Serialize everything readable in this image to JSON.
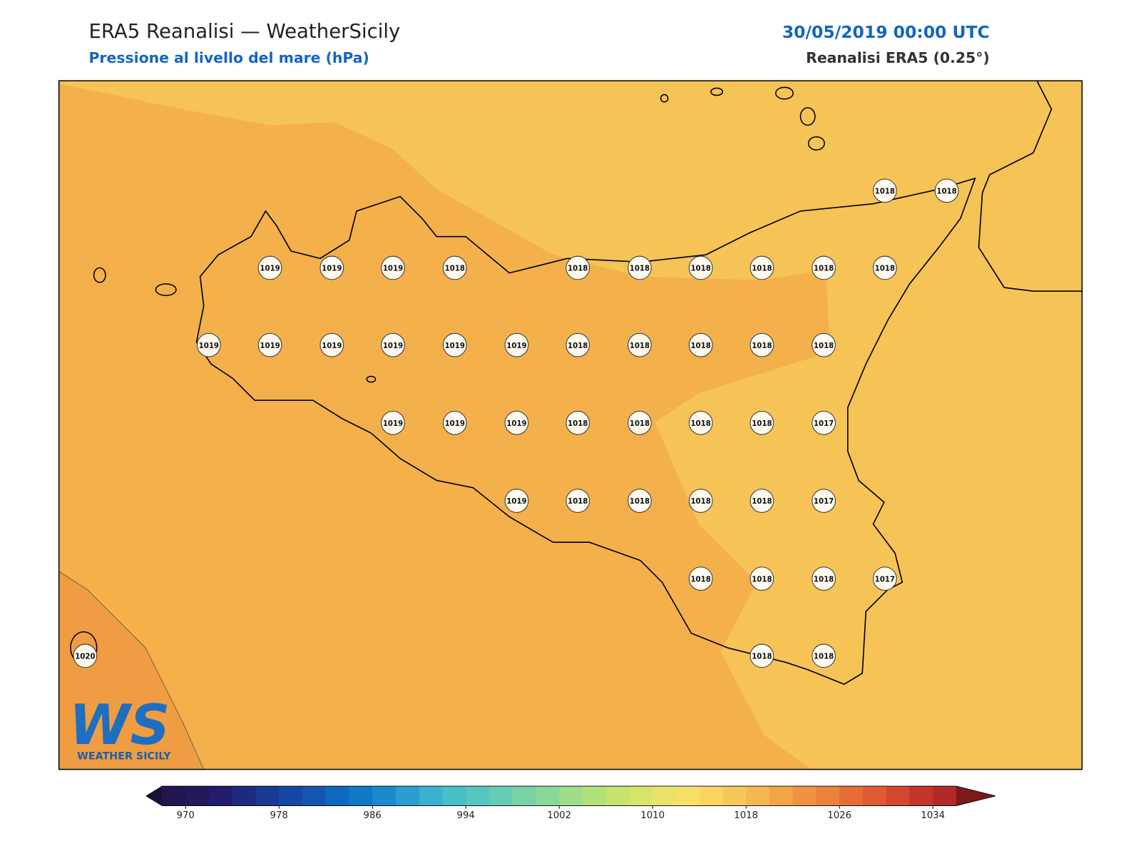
{
  "header": {
    "title": "ERA5 Reanalisi — WeatherSicily",
    "subtitle": "Pressione al livello del mare (hPa)",
    "datetime": "30/05/2019 00:00 UTC",
    "source": "Reanalisi ERA5 (0.25°)"
  },
  "stations": [
    "1018",
    "1018",
    "1019",
    "1019",
    "1019",
    "1018",
    "1018",
    "1018",
    "1018",
    "1018",
    "1018",
    "1018",
    "1019",
    "1019",
    "1019",
    "1019",
    "1019",
    "1019",
    "1018",
    "1018",
    "1018",
    "1018",
    "1018",
    "1019",
    "1019",
    "1019",
    "1018",
    "1018",
    "1018",
    "1018",
    "1017",
    "1019",
    "1018",
    "1018",
    "1018",
    "1018",
    "1017",
    "1018",
    "1018",
    "1018",
    "1017",
    "1020",
    "1018",
    "1018"
  ],
  "colorbar": {
    "ticks": [
      970,
      978,
      986,
      994,
      1002,
      1010,
      1018,
      1026,
      1034
    ],
    "under": "#1a0f3d",
    "over": "#7a1a1a",
    "colors": [
      "#221550",
      "#23175e",
      "#211c6e",
      "#1e2a80",
      "#1a3a92",
      "#1647a3",
      "#1256b1",
      "#0f68bf",
      "#1079c7",
      "#1b8acd",
      "#2b9dd1",
      "#39b1cf",
      "#46bfc9",
      "#55c7bf",
      "#66cdb2",
      "#78d3a5",
      "#8ad898",
      "#9ddd88",
      "#b1e179",
      "#c4e46d",
      "#d6e56a",
      "#e8e46a",
      "#f7df68",
      "#fad561",
      "#f8c75a",
      "#f5b74f",
      "#f2a545",
      "#ef9340",
      "#eb813a",
      "#e66e35",
      "#de5a30",
      "#d3472d",
      "#c4352b",
      "#b22a28"
    ]
  },
  "logo": {
    "text": "WS",
    "caption": "WEATHER SICILY"
  }
}
